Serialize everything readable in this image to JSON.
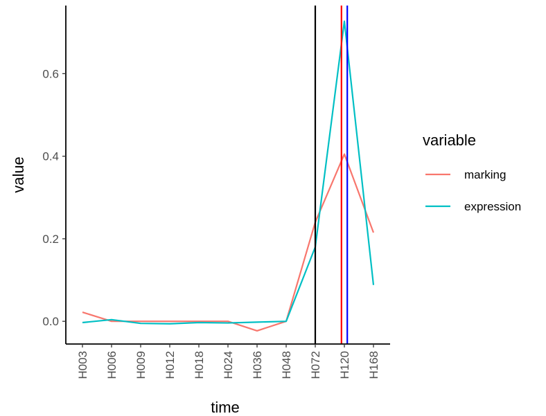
{
  "chart_data": {
    "type": "line",
    "xlabel": "time",
    "ylabel": "value",
    "categories": [
      "H003",
      "H006",
      "H009",
      "H012",
      "H018",
      "H024",
      "H036",
      "H048",
      "H072",
      "H120",
      "H168"
    ],
    "yticks": [
      0.0,
      0.2,
      0.4,
      0.6
    ],
    "ytick_labels": [
      "0.0",
      "0.2",
      "0.4",
      "0.6"
    ],
    "ylim": [
      -0.055,
      0.765
    ],
    "legend": {
      "title": "variable",
      "placement": "right"
    },
    "series": [
      {
        "name": "marking",
        "color": "#F8766D",
        "values": [
          0.022,
          0.0,
          0.0,
          0.0,
          0.0,
          0.0,
          -0.023,
          0.0,
          0.24,
          0.405,
          0.215
        ]
      },
      {
        "name": "expression",
        "color": "#00BFC4",
        "values": [
          -0.003,
          0.004,
          -0.005,
          -0.006,
          -0.003,
          -0.004,
          -0.002,
          0.0,
          0.18,
          0.727,
          0.088
        ]
      }
    ],
    "vertical_lines": [
      {
        "x": "H072",
        "offset": 0.0,
        "color": "#000000"
      },
      {
        "x": "H120",
        "offset": -0.1,
        "color": "#FF0000"
      },
      {
        "x": "H120",
        "offset": 0.1,
        "color": "#0000FF"
      }
    ],
    "grid": false
  }
}
